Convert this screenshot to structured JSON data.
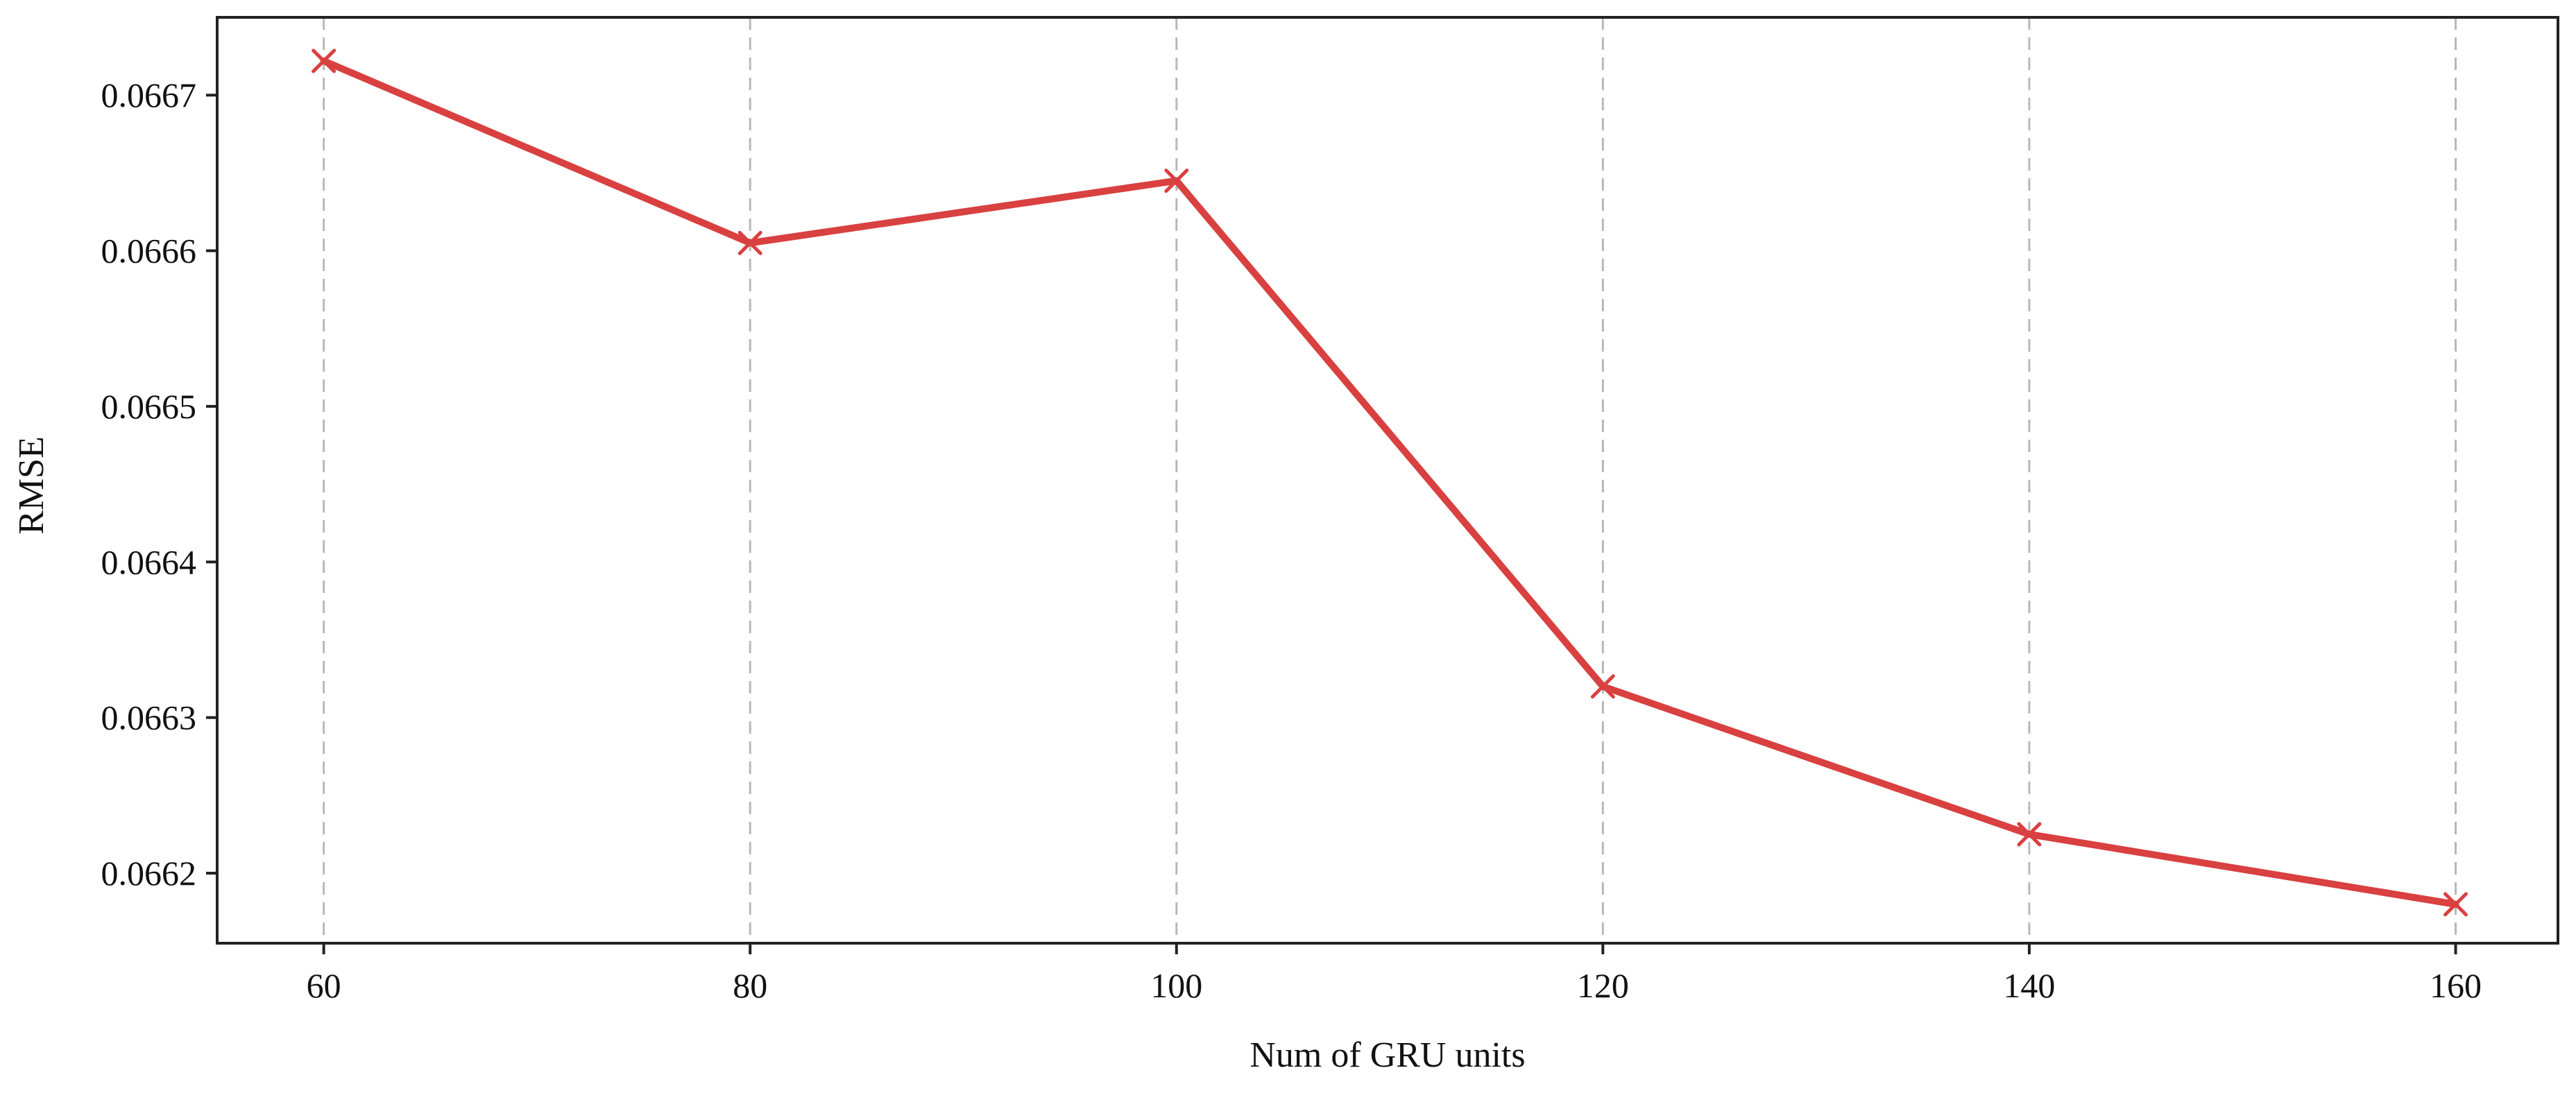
{
  "chart_data": {
    "type": "line",
    "title": "",
    "xlabel": "Num of GRU units",
    "ylabel": "RMSE",
    "x": [
      60,
      80,
      100,
      120,
      140,
      160
    ],
    "series": [
      {
        "name": "",
        "values": [
          0.066722,
          0.066605,
          0.066645,
          0.06632,
          0.066225,
          0.06618
        ],
        "color": "#d94040",
        "marker": "x"
      }
    ],
    "xlim": [
      55,
      164.8
    ],
    "ylim": [
      0.066155,
      0.06675
    ],
    "xticks": [
      60,
      80,
      100,
      120,
      140,
      160
    ],
    "xtick_labels": [
      "60",
      "80",
      "100",
      "120",
      "140",
      "160"
    ],
    "yticks": [
      0.0662,
      0.0663,
      0.0664,
      0.0665,
      0.0666,
      0.0667
    ],
    "ytick_labels": [
      "0.0662",
      "0.0663",
      "0.0664",
      "0.0665",
      "0.0666",
      "0.0667"
    ],
    "grid": "vertical dashed"
  }
}
